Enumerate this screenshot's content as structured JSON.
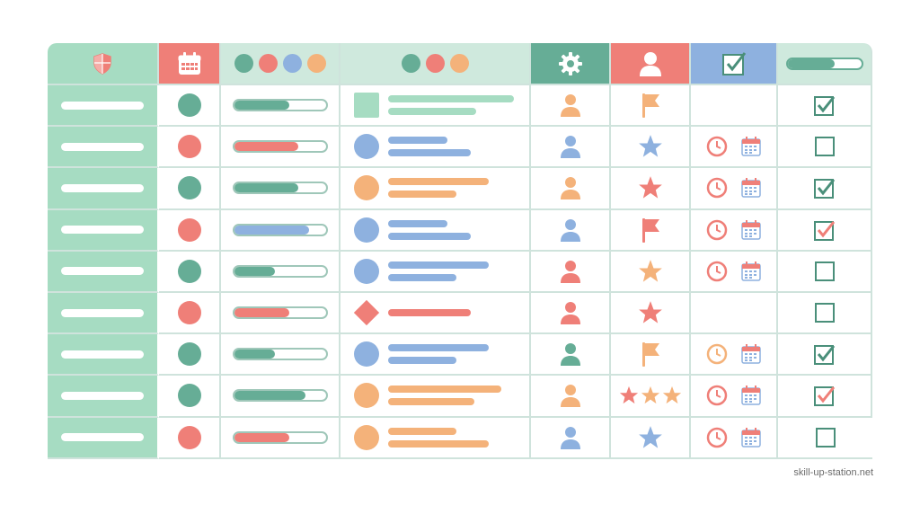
{
  "colors": {
    "green": "#66ad96",
    "red": "#ef7f78",
    "blue": "#8eb1df",
    "orange": "#f4b27a",
    "mint": "#a6dcc2",
    "pale": "#cfe9dd"
  },
  "header": {
    "col0_icon": "shield-icon",
    "col1_icon": "calendar-icon",
    "col2_dots": [
      "green",
      "red",
      "blue",
      "orange"
    ],
    "col3_dots": [
      "green",
      "red",
      "orange"
    ],
    "col4_icon": "gear-icon",
    "col5_icon": "user-icon",
    "col6_icon": "checkbox-checked-icon",
    "col7_progress": 0.64
  },
  "rows": [
    {
      "status": "green",
      "progress": 0.6,
      "progress_color": "green",
      "item_shape": "square",
      "item_color": "mint",
      "item_lines": 2,
      "person": "orange",
      "marker": "flag",
      "marker_color": "orange",
      "marker_count": 1,
      "schedule": false,
      "check": "green-check"
    },
    {
      "status": "red",
      "progress": 0.7,
      "progress_color": "red",
      "item_shape": "circle",
      "item_color": "blue",
      "item_lines": 2,
      "person": "blue",
      "marker": "star",
      "marker_color": "blue",
      "marker_count": 1,
      "schedule": true,
      "clock_color": "red",
      "check": "empty"
    },
    {
      "status": "green",
      "progress": 0.7,
      "progress_color": "green",
      "item_shape": "circle",
      "item_color": "orange",
      "item_lines": 2,
      "person": "orange",
      "marker": "star",
      "marker_color": "red",
      "marker_count": 1,
      "schedule": true,
      "clock_color": "red",
      "check": "green-check"
    },
    {
      "status": "red",
      "progress": 0.82,
      "progress_color": "blue",
      "item_shape": "circle",
      "item_color": "blue",
      "item_lines": 2,
      "person": "blue",
      "marker": "flag",
      "marker_color": "red",
      "marker_count": 1,
      "schedule": true,
      "clock_color": "red",
      "check": "red-check"
    },
    {
      "status": "green",
      "progress": 0.45,
      "progress_color": "green",
      "item_shape": "circle",
      "item_color": "blue",
      "item_lines": 2,
      "person": "red",
      "marker": "star",
      "marker_color": "orange",
      "marker_count": 1,
      "schedule": true,
      "clock_color": "red",
      "check": "empty"
    },
    {
      "status": "red",
      "progress": 0.6,
      "progress_color": "red",
      "item_shape": "diamond",
      "item_color": "red",
      "item_lines": 1,
      "person": "red",
      "marker": "star",
      "marker_color": "red",
      "marker_count": 1,
      "schedule": false,
      "check": "empty"
    },
    {
      "status": "green",
      "progress": 0.45,
      "progress_color": "green",
      "item_shape": "circle",
      "item_color": "blue",
      "item_lines": 2,
      "person": "green",
      "marker": "flag",
      "marker_color": "orange",
      "marker_count": 1,
      "schedule": true,
      "clock_color": "orange",
      "check": "green-check"
    },
    {
      "status": "green",
      "progress": 0.78,
      "progress_color": "green",
      "item_shape": "circle",
      "item_color": "orange",
      "item_lines": 2,
      "person": "orange",
      "marker": "star",
      "marker_color": "multi",
      "marker_count": 3,
      "schedule": true,
      "clock_color": "red",
      "check": "red-check"
    },
    {
      "status": "red",
      "progress": 0.6,
      "progress_color": "red",
      "item_shape": "circle",
      "item_color": "orange",
      "item_lines": 2,
      "person": "blue",
      "marker": "star",
      "marker_color": "blue",
      "marker_count": 1,
      "schedule": true,
      "clock_color": "red",
      "check": "empty"
    }
  ],
  "watermark": "skill-up-station.net"
}
